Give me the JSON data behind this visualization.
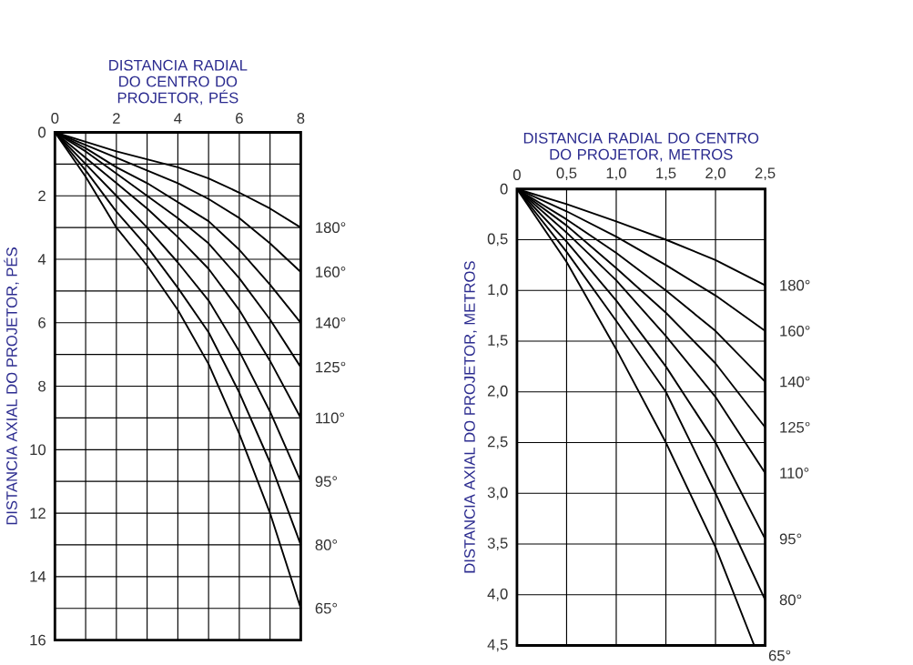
{
  "chart_data": [
    {
      "type": "line",
      "xlabel": "DISTANCIA RADIAL DO CENTRO DO PROJETOR, PÉS",
      "ylabel": "DISTANCIA AXIAL DO PROJETOR, PÉS",
      "grid": true,
      "xlim": [
        0,
        8
      ],
      "ylim": [
        16,
        0
      ],
      "xticks": [
        0,
        {
          "value": 1,
          "label": null
        },
        2,
        {
          "value": 3,
          "label": null
        },
        4,
        {
          "value": 5,
          "label": null
        },
        6,
        {
          "value": 7,
          "label": null
        },
        8
      ],
      "yticks": [
        0,
        {
          "value": 1,
          "label": null
        },
        2,
        {
          "value": 3,
          "label": null
        },
        4,
        {
          "value": 5,
          "label": null
        },
        6,
        {
          "value": 7,
          "label": null
        },
        8,
        {
          "value": 9,
          "label": null
        },
        10,
        {
          "value": 11,
          "label": null
        },
        12,
        {
          "value": 13,
          "label": null
        },
        14,
        {
          "value": 15,
          "label": null
        },
        16
      ],
      "x": [
        0,
        1,
        2,
        3,
        4,
        5,
        6,
        7,
        8
      ],
      "series": [
        {
          "name": "180°",
          "color": "#000000",
          "values": [
            0,
            0.3,
            0.6,
            0.85,
            1.1,
            1.45,
            1.9,
            2.4,
            3.0
          ]
        },
        {
          "name": "160°",
          "color": "#000000",
          "values": [
            0,
            0.4,
            0.8,
            1.2,
            1.6,
            2.1,
            2.7,
            3.5,
            4.4
          ]
        },
        {
          "name": "140°",
          "color": "#000000",
          "values": [
            0,
            0.5,
            1.1,
            1.6,
            2.2,
            2.8,
            3.7,
            4.8,
            6.0
          ]
        },
        {
          "name": "125°",
          "color": "#000000",
          "values": [
            0,
            0.6,
            1.3,
            2.0,
            2.7,
            3.5,
            4.6,
            5.9,
            7.4
          ]
        },
        {
          "name": "110°",
          "color": "#000000",
          "values": [
            0,
            0.8,
            1.6,
            2.4,
            3.3,
            4.3,
            5.6,
            7.2,
            9.0
          ]
        },
        {
          "name": "95°",
          "color": "#000000",
          "values": [
            0,
            1.0,
            2.0,
            3.0,
            4.1,
            5.3,
            6.9,
            8.8,
            11.0
          ]
        },
        {
          "name": "80°",
          "color": "#000000",
          "values": [
            0,
            1.2,
            2.5,
            3.6,
            4.9,
            6.3,
            8.2,
            10.4,
            13.0
          ]
        },
        {
          "name": "65°",
          "color": "#000000",
          "values": [
            0,
            1.4,
            3.0,
            4.2,
            5.6,
            7.3,
            9.5,
            12.0,
            15.0
          ]
        }
      ]
    },
    {
      "type": "line",
      "xlabel": "DISTANCIA RADIAL DO CENTRO DO PROJETOR, METROS",
      "ylabel": "DISTANCIA AXIAL DO PROJETOR, METROS",
      "grid": true,
      "xlim": [
        0,
        2.5
      ],
      "ylim": [
        4.5,
        0
      ],
      "xticks": [
        0,
        {
          "value": 0.5,
          "label": "0,5"
        },
        {
          "value": 1,
          "label": "1,0"
        },
        {
          "value": 1.5,
          "label": "1,5"
        },
        {
          "value": 2,
          "label": "2,0"
        },
        {
          "value": 2.5,
          "label": "2,5"
        }
      ],
      "yticks": [
        0,
        {
          "value": 0.5,
          "label": "0,5"
        },
        {
          "value": 1,
          "label": "1,0"
        },
        {
          "value": 1.5,
          "label": "1,5"
        },
        {
          "value": 2,
          "label": "2,0"
        },
        {
          "value": 2.5,
          "label": "2,5"
        },
        {
          "value": 3,
          "label": "3,0"
        },
        {
          "value": 3.5,
          "label": "3,5"
        },
        {
          "value": 4,
          "label": "4,0"
        },
        {
          "value": 4.5,
          "label": "4,5"
        }
      ],
      "x": [
        0,
        0.5,
        1,
        1.5,
        2,
        2.5
      ],
      "series": [
        {
          "name": "180°",
          "color": "#000000",
          "values": [
            0,
            0.15,
            0.32,
            0.5,
            0.7,
            0.95
          ]
        },
        {
          "name": "160°",
          "color": "#000000",
          "values": [
            0,
            0.22,
            0.47,
            0.75,
            1.05,
            1.4
          ]
        },
        {
          "name": "140°",
          "color": "#000000",
          "values": [
            0,
            0.3,
            0.63,
            1.0,
            1.4,
            1.9
          ]
        },
        {
          "name": "125°",
          "color": "#000000",
          "values": [
            0,
            0.36,
            0.78,
            1.22,
            1.72,
            2.35
          ]
        },
        {
          "name": "110°",
          "color": "#000000",
          "values": [
            0,
            0.43,
            0.9,
            1.45,
            2.05,
            2.8
          ]
        },
        {
          "name": "95°",
          "color": "#000000",
          "values": [
            0,
            0.52,
            1.1,
            1.75,
            2.5,
            3.45
          ]
        },
        {
          "name": "80°",
          "color": "#000000",
          "values": [
            0,
            0.62,
            1.3,
            2.0,
            3.0,
            4.05
          ]
        },
        {
          "name": "65°",
          "color": "#000000",
          "x": [
            0,
            0.5,
            1,
            1.5,
            2,
            2.39
          ],
          "values": [
            0,
            0.72,
            1.58,
            2.5,
            3.53,
            4.5
          ]
        }
      ]
    }
  ]
}
